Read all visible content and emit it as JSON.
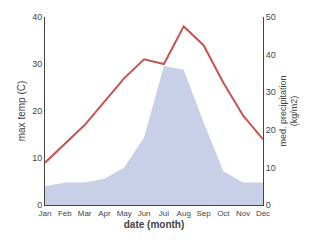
{
  "chart_data": {
    "type": "line",
    "categories": [
      "Jan",
      "Feb",
      "Mar",
      "Apr",
      "May",
      "Jun",
      "Jul",
      "Aug",
      "Sep",
      "Oct",
      "Nov",
      "Dec"
    ],
    "xlabel": "date (month)",
    "ylabel": "max temp (C)",
    "y2label": "med. precipitation\n(kg/m2)",
    "ylim": [
      0,
      40
    ],
    "yticks": [
      0,
      10,
      20,
      30,
      40
    ],
    "y2lim": [
      0,
      50
    ],
    "y2ticks": [
      0,
      10,
      20,
      30,
      40,
      50
    ],
    "grid": false,
    "series": [
      {
        "type": "area",
        "axis": "y2",
        "color": "#c8d0e8",
        "values": [
          5,
          6,
          6,
          7,
          10,
          18,
          37,
          36,
          22,
          9,
          6,
          6
        ]
      },
      {
        "type": "line",
        "color": "#c9534f",
        "values": [
          9,
          13,
          17,
          22,
          27,
          31,
          30,
          38,
          34,
          26,
          19,
          14
        ]
      }
    ]
  }
}
